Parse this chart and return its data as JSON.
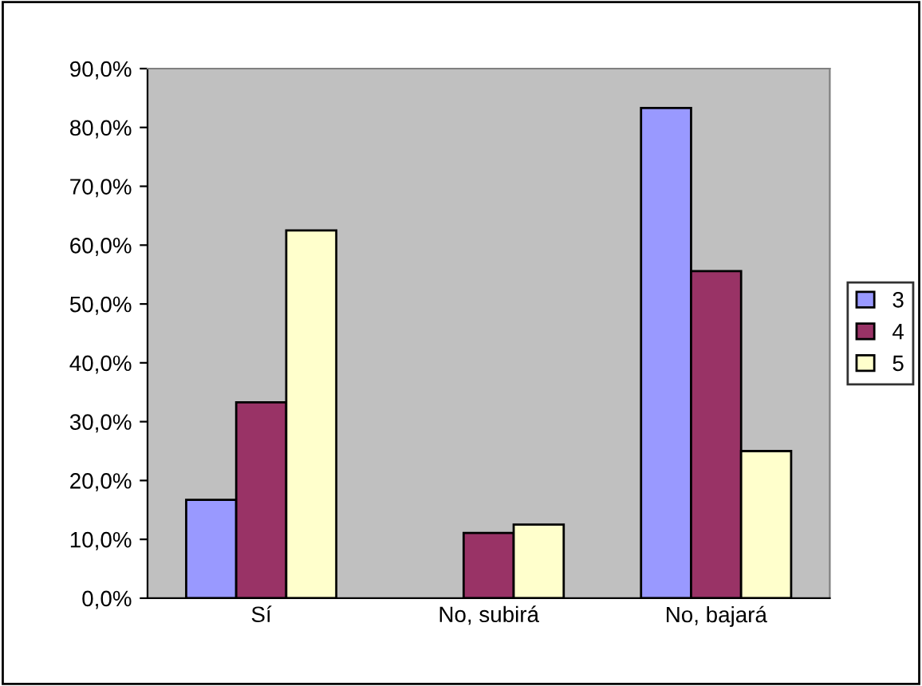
{
  "chart_data": {
    "type": "bar",
    "categories": [
      "Sí",
      "No, subirá",
      "No, bajará"
    ],
    "series": [
      {
        "name": "3",
        "color": "#9999ff",
        "values": [
          16.7,
          null,
          83.3
        ]
      },
      {
        "name": "4",
        "color": "#993366",
        "values": [
          33.3,
          11.1,
          55.6
        ]
      },
      {
        "name": "5",
        "color": "#ffffcc",
        "values": [
          62.5,
          12.5,
          25.0
        ]
      }
    ],
    "ylim": [
      0,
      90
    ],
    "yticks": [
      {
        "value": 0,
        "label": "0,0%"
      },
      {
        "value": 10,
        "label": "10,0%"
      },
      {
        "value": 20,
        "label": "20,0%"
      },
      {
        "value": 30,
        "label": "30,0%"
      },
      {
        "value": 40,
        "label": "40,0%"
      },
      {
        "value": 50,
        "label": "50,0%"
      },
      {
        "value": 60,
        "label": "60,0%"
      },
      {
        "value": 70,
        "label": "70,0%"
      },
      {
        "value": 80,
        "label": "80,0%"
      },
      {
        "value": 90,
        "label": "90,0%"
      }
    ],
    "grid": false,
    "legend": "right"
  }
}
